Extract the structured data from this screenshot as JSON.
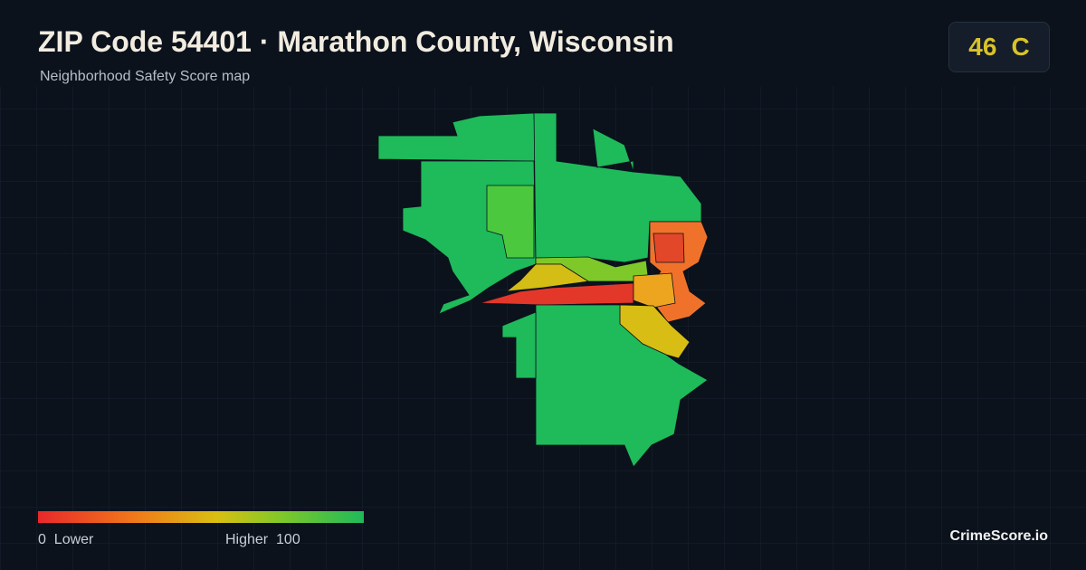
{
  "header": {
    "title": "ZIP Code 54401 · Marathon County, Wisconsin",
    "subtitle": "Neighborhood Safety Score map"
  },
  "score": {
    "value": 46,
    "grade": "C"
  },
  "legend": {
    "min": 0,
    "min_label": "Lower",
    "max_label": "Higher",
    "max": 100
  },
  "brand": "CrimeScore.io"
}
